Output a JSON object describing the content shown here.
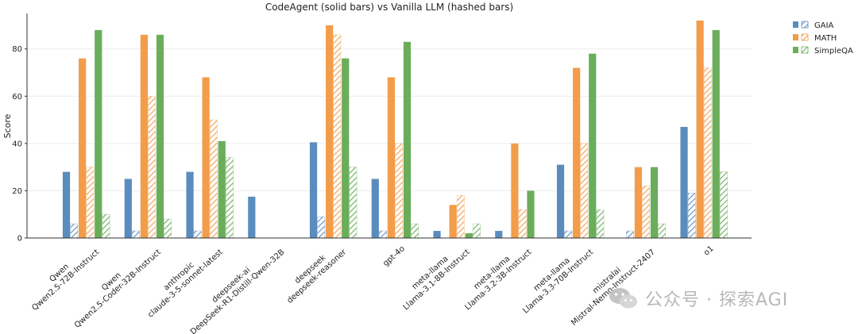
{
  "chart_data": {
    "type": "bar",
    "title": "CodeAgent (solid bars) vs Vanilla LLM (hashed bars)",
    "xlabel": "",
    "ylabel": "Score",
    "ylim": [
      0,
      95
    ],
    "yticks": [
      0,
      20,
      40,
      60,
      80
    ],
    "grid": true,
    "legend_position": "top-right",
    "categories": [
      [
        "Qwen",
        "Qwen2.5-72B-Instruct"
      ],
      [
        "Qwen",
        "Qwen2.5-Coder-32B-Instruct"
      ],
      [
        "anthropic",
        "claude-3-5-sonnet-latest"
      ],
      [
        "deepseek-ai",
        "DeepSeek-R1-Distill-Qwen-32B"
      ],
      [
        "deepseek",
        "deepseek-reasoner"
      ],
      [
        "gpt-4o"
      ],
      [
        "meta-llama",
        "Llama-3.1-8B-Instruct"
      ],
      [
        "meta-llama",
        "Llama-3.2-3B-Instruct"
      ],
      [
        "meta-llama",
        "Llama-3.3-70B-Instruct"
      ],
      [
        "mistralai",
        "Mistral-Nemo-Instruct-2407"
      ],
      [
        "o1"
      ]
    ],
    "series": [
      {
        "name": "GAIA",
        "color": "#5b8cbe",
        "codeagent": [
          28,
          25,
          28,
          17.5,
          40.5,
          25,
          3,
          3,
          31,
          null,
          47
        ],
        "vanilla": [
          6,
          3,
          3,
          null,
          9,
          3,
          null,
          null,
          3,
          3,
          19
        ]
      },
      {
        "name": "MATH",
        "color": "#f39c4a",
        "codeagent": [
          76,
          86,
          68,
          null,
          90,
          68,
          14,
          40,
          72,
          30,
          92
        ],
        "vanilla": [
          30,
          60,
          50,
          null,
          86,
          40,
          18,
          12,
          40,
          22,
          72
        ]
      },
      {
        "name": "SimpleQA",
        "color": "#6aad5a",
        "codeagent": [
          88,
          86,
          41,
          null,
          76,
          83,
          2,
          20,
          78,
          30,
          88
        ],
        "vanilla": [
          10,
          8,
          34,
          null,
          30,
          6,
          6,
          null,
          12,
          6,
          28
        ]
      }
    ]
  },
  "watermark": {
    "icon": "wechat-icon",
    "text": "公众号 · 探索AGI"
  }
}
